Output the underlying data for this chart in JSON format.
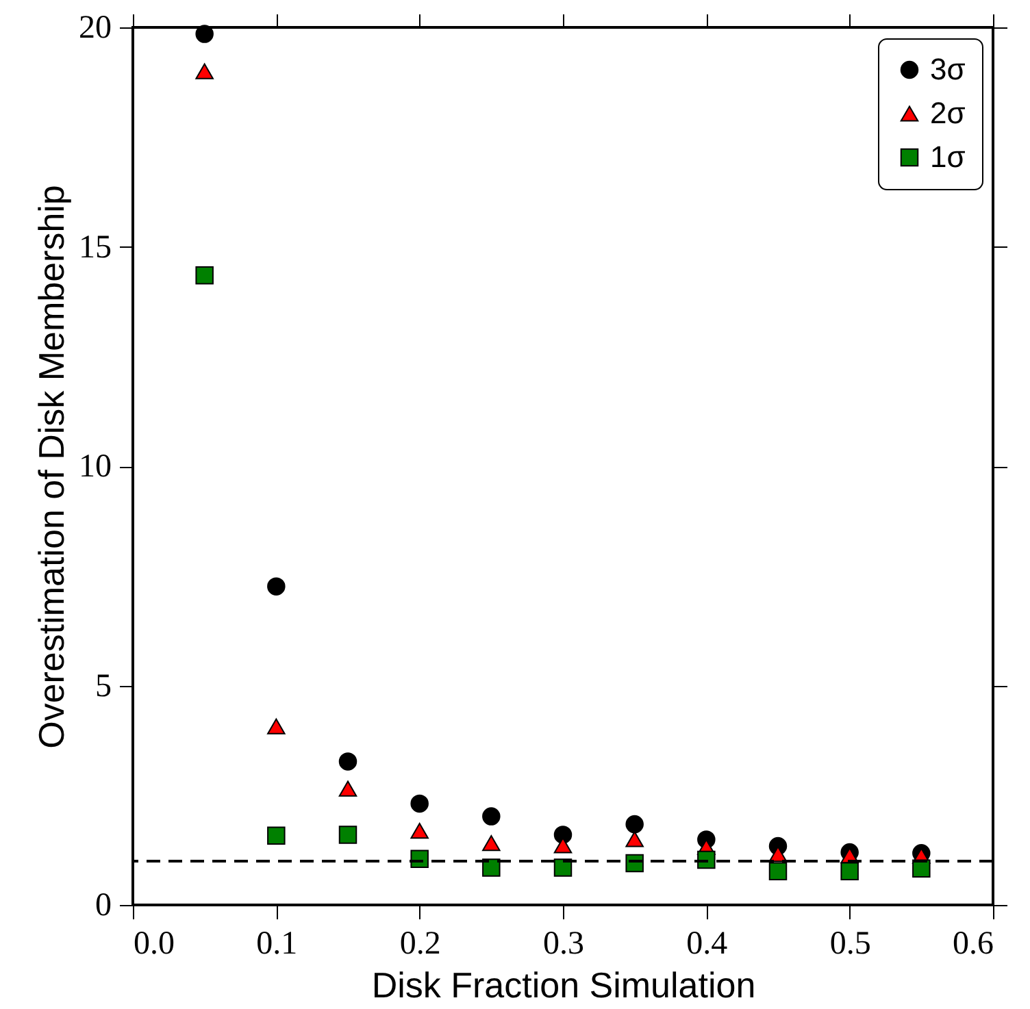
{
  "chart_data": {
    "type": "scatter",
    "xlabel": "Disk Fraction Simulation",
    "ylabel": "Overestimation of Disk Membership",
    "x": [
      0.05,
      0.1,
      0.15,
      0.2,
      0.25,
      0.3,
      0.35,
      0.4,
      0.45,
      0.5,
      0.55
    ],
    "series": [
      {
        "name": "3σ",
        "color": "#000000",
        "marker": "circle",
        "values": [
          19.85,
          7.26,
          3.27,
          2.31,
          2.02,
          1.6,
          1.84,
          1.49,
          1.34,
          1.2,
          1.18
        ]
      },
      {
        "name": "2σ",
        "color": "#ff0000",
        "marker": "triangle",
        "values": [
          19.0,
          4.07,
          2.65,
          1.69,
          1.41,
          1.36,
          1.5,
          1.32,
          1.16,
          1.13,
          1.12
        ]
      },
      {
        "name": "1σ",
        "color": "#008000",
        "marker": "square",
        "values": [
          14.35,
          1.58,
          1.6,
          1.05,
          0.85,
          0.85,
          0.95,
          1.03,
          0.77,
          0.77,
          0.83
        ]
      }
    ],
    "xlim": [
      0,
      0.6
    ],
    "xticks": [
      {
        "value": 0,
        "label": "0.0"
      },
      0.1,
      0.2,
      0.3,
      0.4,
      0.5,
      0.6
    ],
    "ylim": [
      0,
      20
    ],
    "yticks": [
      0,
      5,
      10,
      15,
      20
    ],
    "ref_lines": [
      {
        "axis": "y",
        "value": 1,
        "line_style": "dashed",
        "color": "#000000"
      }
    ],
    "grid": false,
    "legend": "top right"
  }
}
